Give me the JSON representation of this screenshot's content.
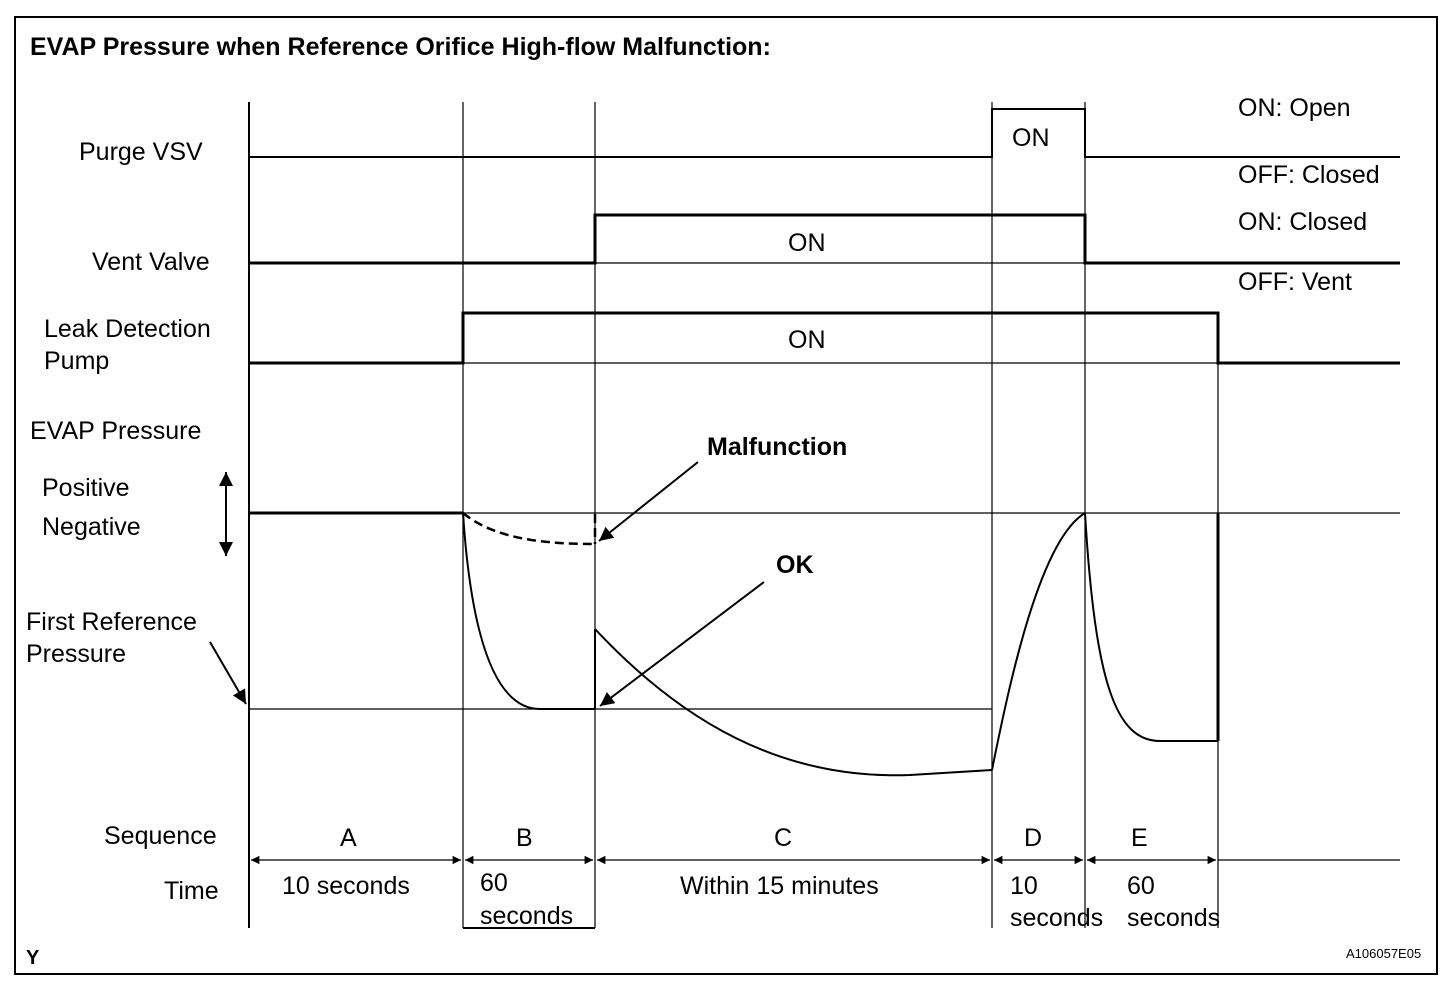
{
  "title": "EVAP Pressure when Reference Orifice High-flow Malfunction:",
  "signals": {
    "purge_vsv": "Purge VSV",
    "vent_valve": "Vent Valve",
    "leak_pump_line1": "Leak Detection",
    "leak_pump_line2": "Pump",
    "evap_pressure": "EVAP Pressure",
    "positive": "Positive",
    "negative": "Negative",
    "first_ref_line1": "First Reference",
    "first_ref_line2": "Pressure"
  },
  "states": {
    "purge_on": "ON: Open",
    "purge_off": "OFF: Closed",
    "vent_on": "ON: Closed",
    "vent_off": "OFF: Vent",
    "on": "ON"
  },
  "annotations": {
    "malfunction": "Malfunction",
    "ok": "OK"
  },
  "sequence_label": "Sequence",
  "time_label": "Time",
  "phases": [
    {
      "id": "A",
      "time_line1": "10 seconds",
      "time_line2": ""
    },
    {
      "id": "B",
      "time_line1": "60",
      "time_line2": "seconds"
    },
    {
      "id": "C",
      "time_line1": "Within 15 minutes",
      "time_line2": ""
    },
    {
      "id": "D",
      "time_line1": "10",
      "time_line2": "seconds"
    },
    {
      "id": "E",
      "time_line1": "60",
      "time_line2": "seconds"
    }
  ],
  "corner_left": "Y",
  "corner_right": "A106057E05"
}
